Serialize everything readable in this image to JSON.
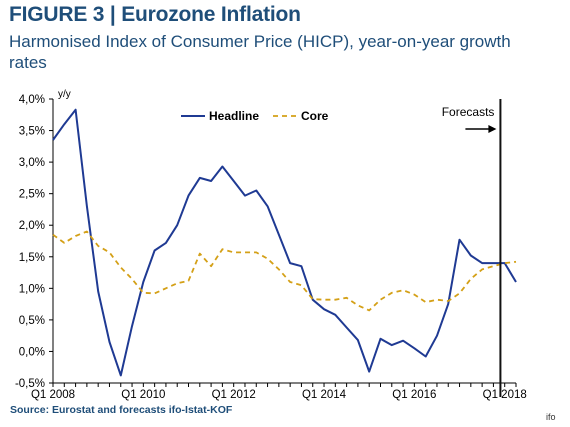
{
  "title": "FIGURE 3 | Eurozone Inflation",
  "subtitle": "Harmonised Index of Consumer Price (HICP), year-on-year growth rates",
  "source": "Source: Eurostat and forecasts ifo-Istat-KOF",
  "credit": "ifo",
  "colors": {
    "title": "#1f4e79",
    "headline": "#1f3a93",
    "core": "#d4a017",
    "axis": "#000000",
    "grid": "#ffffff"
  },
  "chart_data": {
    "type": "line",
    "ylabel": "y/y",
    "ylim": [
      -0.5,
      4.0
    ],
    "yticks": [
      -0.5,
      0.0,
      0.5,
      1.0,
      1.5,
      2.0,
      2.5,
      3.0,
      3.5,
      4.0
    ],
    "ytick_labels": [
      "-0,5%",
      "0,0%",
      "0,5%",
      "1,0%",
      "1,5%",
      "2,0%",
      "2,5%",
      "3,0%",
      "3,5%",
      "4,0%"
    ],
    "xlim": [
      2008.0,
      2018.25
    ],
    "xticks": [
      2008,
      2010,
      2012,
      2014,
      2016,
      2018
    ],
    "xtick_labels": [
      "Q1 2008",
      "Q1 2010",
      "Q1 2012",
      "Q1 2014",
      "Q1 2016",
      "Q1 2018"
    ],
    "legend": {
      "position": "top-center",
      "entries": [
        "Headline",
        "Core"
      ]
    },
    "annotation": {
      "text": "Forecasts",
      "x": 2017.75,
      "style": "vertical line with arrow pointing right"
    },
    "series": [
      {
        "name": "Headline",
        "style": "solid",
        "x": [
          2008.0,
          2008.25,
          2008.5,
          2008.75,
          2009.0,
          2009.25,
          2009.5,
          2009.75,
          2010.0,
          2010.25,
          2010.5,
          2010.75,
          2011.0,
          2011.25,
          2011.5,
          2011.75,
          2012.0,
          2012.25,
          2012.5,
          2012.75,
          2013.0,
          2013.25,
          2013.5,
          2013.75,
          2014.0,
          2014.25,
          2014.5,
          2014.75,
          2015.0,
          2015.25,
          2015.5,
          2015.75,
          2016.0,
          2016.25,
          2016.5,
          2016.75,
          2017.0,
          2017.25,
          2017.5,
          2017.75,
          2018.0,
          2018.25
        ],
        "values": [
          3.35,
          3.6,
          3.83,
          2.3,
          0.95,
          0.15,
          -0.38,
          0.4,
          1.1,
          1.6,
          1.72,
          2.0,
          2.47,
          2.75,
          2.7,
          2.93,
          2.7,
          2.47,
          2.55,
          2.3,
          1.85,
          1.4,
          1.35,
          0.82,
          0.67,
          0.58,
          0.38,
          0.18,
          -0.32,
          0.2,
          0.1,
          0.17,
          0.05,
          -0.08,
          0.25,
          0.75,
          1.77,
          1.52,
          1.4,
          1.4,
          1.4,
          1.1
        ]
      },
      {
        "name": "Core",
        "style": "dashed",
        "x": [
          2008.0,
          2008.25,
          2008.5,
          2008.75,
          2009.0,
          2009.25,
          2009.5,
          2009.75,
          2010.0,
          2010.25,
          2010.5,
          2010.75,
          2011.0,
          2011.25,
          2011.5,
          2011.75,
          2012.0,
          2012.25,
          2012.5,
          2012.75,
          2013.0,
          2013.25,
          2013.5,
          2013.75,
          2014.0,
          2014.25,
          2014.5,
          2014.75,
          2015.0,
          2015.25,
          2015.5,
          2015.75,
          2016.0,
          2016.25,
          2016.5,
          2016.75,
          2017.0,
          2017.25,
          2017.5,
          2017.75,
          2018.0,
          2018.25
        ],
        "values": [
          1.85,
          1.72,
          1.83,
          1.9,
          1.67,
          1.57,
          1.33,
          1.15,
          0.93,
          0.92,
          1.0,
          1.08,
          1.12,
          1.55,
          1.35,
          1.62,
          1.57,
          1.57,
          1.57,
          1.47,
          1.3,
          1.1,
          1.05,
          0.83,
          0.82,
          0.82,
          0.85,
          0.73,
          0.65,
          0.82,
          0.93,
          0.97,
          0.9,
          0.78,
          0.82,
          0.8,
          0.92,
          1.15,
          1.3,
          1.35,
          1.4,
          1.42
        ]
      }
    ]
  }
}
